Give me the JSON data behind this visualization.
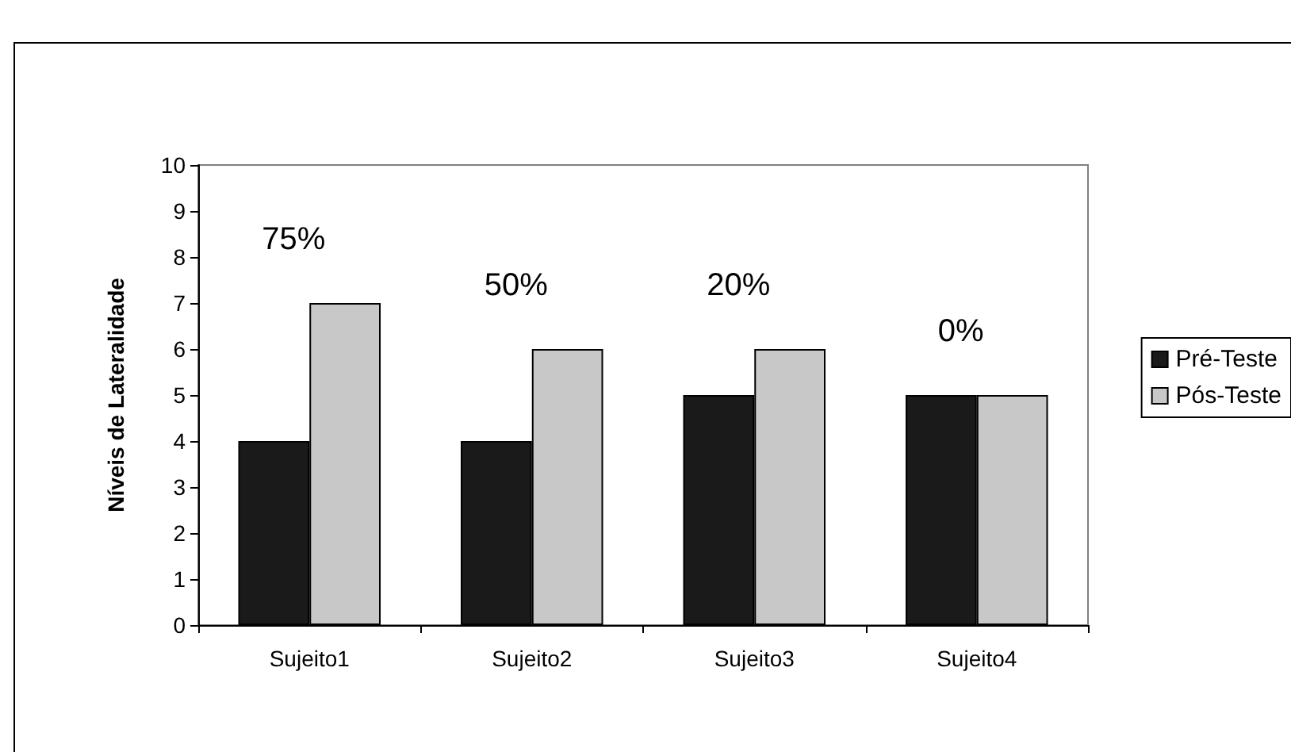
{
  "chart_data": {
    "type": "bar",
    "ylabel": "Níveis de Lateralidade",
    "categories": [
      "Sujeito1",
      "Sujeito2",
      "Sujeito3",
      "Sujeito4"
    ],
    "series": [
      {
        "name": "Pré-Teste",
        "color": "#1a1a1a",
        "values": [
          4,
          4,
          5,
          5
        ]
      },
      {
        "name": "Pós-Teste",
        "color": "#c8c8c8",
        "values": [
          7,
          6,
          6,
          5
        ]
      }
    ],
    "ylim": [
      0,
      10
    ],
    "yticks": [
      0,
      1,
      2,
      3,
      4,
      5,
      6,
      7,
      8,
      9,
      10
    ],
    "grid": false,
    "legend": "right",
    "annotations": [
      "75%",
      "50%",
      "20%",
      "0%"
    ]
  }
}
